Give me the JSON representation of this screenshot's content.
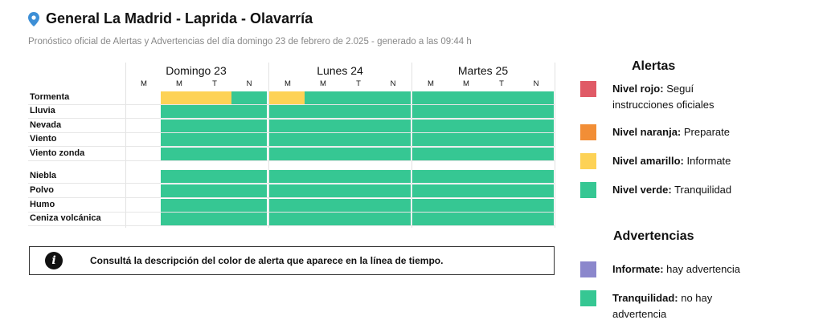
{
  "header": {
    "title": "General La Madrid - Laprida - Olavarría",
    "subtitle": "Pronóstico oficial de Alertas y Advertencias del día domingo 23 de febrero de 2.025 - generado a las 09:44 h",
    "location_icon": "map-pin-icon"
  },
  "timeline": {
    "days": [
      {
        "label": "Domingo 23",
        "slots": [
          "M",
          "M",
          "T",
          "N"
        ]
      },
      {
        "label": "Lunes 24",
        "slots": [
          "M",
          "M",
          "T",
          "N"
        ]
      },
      {
        "label": "Martes 25",
        "slots": [
          "M",
          "M",
          "T",
          "N"
        ]
      }
    ],
    "rows": [
      {
        "label": "Tormenta",
        "levels": [
          "none",
          "yellow",
          "yellow",
          "green",
          "yellow",
          "green",
          "green",
          "green",
          "green",
          "green",
          "green",
          "green"
        ]
      },
      {
        "label": "Lluvia",
        "levels": [
          "none",
          "green",
          "green",
          "green",
          "green",
          "green",
          "green",
          "green",
          "green",
          "green",
          "green",
          "green"
        ]
      },
      {
        "label": "Nevada",
        "levels": [
          "none",
          "green",
          "green",
          "green",
          "green",
          "green",
          "green",
          "green",
          "green",
          "green",
          "green",
          "green"
        ]
      },
      {
        "label": "Viento",
        "levels": [
          "none",
          "green",
          "green",
          "green",
          "green",
          "green",
          "green",
          "green",
          "green",
          "green",
          "green",
          "green"
        ]
      },
      {
        "label": "Viento zonda",
        "levels": [
          "none",
          "green",
          "green",
          "green",
          "green",
          "green",
          "green",
          "green",
          "green",
          "green",
          "green",
          "green"
        ]
      },
      {
        "label": "Niebla",
        "levels": [
          "none",
          "green",
          "green",
          "green",
          "green",
          "green",
          "green",
          "green",
          "green",
          "green",
          "green",
          "green"
        ]
      },
      {
        "label": "Polvo",
        "levels": [
          "none",
          "green",
          "green",
          "green",
          "green",
          "green",
          "green",
          "green",
          "green",
          "green",
          "green",
          "green"
        ]
      },
      {
        "label": "Humo",
        "levels": [
          "none",
          "green",
          "green",
          "green",
          "green",
          "green",
          "green",
          "green",
          "green",
          "green",
          "green",
          "green"
        ]
      },
      {
        "label": "Ceniza volcánica",
        "levels": [
          "none",
          "green",
          "green",
          "green",
          "green",
          "green",
          "green",
          "green",
          "green",
          "green",
          "green",
          "green"
        ]
      }
    ]
  },
  "info": {
    "icon": "info-icon",
    "text": "Consultá la descripción del color de alerta que aparece en la línea de tiempo."
  },
  "alertas": {
    "heading": "Alertas",
    "items": [
      {
        "name": "Nivel rojo:",
        "desc": "Seguí instrucciones oficiales",
        "color": "#e05a66"
      },
      {
        "name": "Nivel naranja:",
        "desc": "Preparate",
        "color": "#f28e36"
      },
      {
        "name": "Nivel amarillo:",
        "desc": "Informate",
        "color": "#fdd256"
      },
      {
        "name": "Nivel verde:",
        "desc": "Tranquilidad",
        "color": "#36c793"
      }
    ]
  },
  "advertencias": {
    "heading": "Advertencias",
    "items": [
      {
        "name": "Informate:",
        "desc": "hay advertencia",
        "color": "#8b87cc"
      },
      {
        "name": "Tranquilidad:",
        "desc": "no hay advertencia",
        "color": "#36c793"
      }
    ]
  },
  "colors": {
    "green": "#36c793",
    "yellow": "#fdd256",
    "orange": "#f28e36",
    "red": "#e05a66"
  }
}
